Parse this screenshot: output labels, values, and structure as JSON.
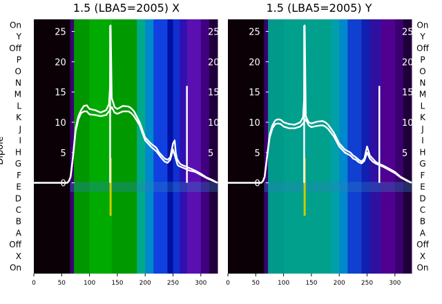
{
  "chart_data": [
    {
      "type": "heatmap",
      "title": "1.5 (LBA5=2005) X",
      "ylabel": "Dipole",
      "y_categories": [
        "On",
        "Y",
        "Off",
        "P",
        "O",
        "N",
        "M",
        "L",
        "K",
        "J",
        "I",
        "H",
        "G",
        "F",
        "E",
        "D",
        "C",
        "B",
        "A",
        "Off",
        "X",
        "On"
      ],
      "xlim": [
        0,
        330
      ],
      "x_ticks": [
        0,
        50,
        100,
        150,
        200,
        250,
        300
      ],
      "overlay_ylim": [
        -15,
        27
      ],
      "overlay_ticks": [
        0,
        5,
        10,
        15,
        20,
        25
      ],
      "bands": [
        {
          "x0": 0,
          "x1": 65,
          "color": "#0a0006"
        },
        {
          "x0": 65,
          "x1": 72,
          "color": "#3a0070"
        },
        {
          "x0": 72,
          "x1": 100,
          "color": "#009600"
        },
        {
          "x0": 100,
          "x1": 140,
          "color": "#00aa00"
        },
        {
          "x0": 140,
          "x1": 185,
          "color": "#009a00"
        },
        {
          "x0": 185,
          "x1": 200,
          "color": "#00aa88"
        },
        {
          "x0": 200,
          "x1": 215,
          "color": "#0088cc"
        },
        {
          "x0": 215,
          "x1": 240,
          "color": "#1040e0"
        },
        {
          "x0": 240,
          "x1": 250,
          "color": "#0010a0"
        },
        {
          "x0": 250,
          "x1": 262,
          "color": "#1030d0"
        },
        {
          "x0": 262,
          "x1": 275,
          "color": "#3010b0"
        },
        {
          "x0": 275,
          "x1": 300,
          "color": "#5a10b0"
        },
        {
          "x0": 300,
          "x1": 315,
          "color": "#400080"
        },
        {
          "x0": 315,
          "x1": 330,
          "color": "#20003a"
        }
      ],
      "highlight_row": "E",
      "lines": [
        {
          "x": [
            0,
            60,
            63,
            66,
            70,
            75,
            80,
            85,
            90,
            95,
            100,
            110,
            120,
            130,
            135,
            137,
            138,
            140,
            145,
            150,
            160,
            170,
            175,
            180,
            190,
            200,
            210,
            220,
            225,
            230,
            235,
            240,
            245,
            250,
            253,
            255,
            257,
            260,
            262,
            265,
            270,
            275,
            280,
            290,
            300,
            310,
            320,
            330
          ],
          "y": [
            0,
            0,
            0.3,
            1,
            4,
            9,
            11,
            12,
            12.7,
            12.8,
            12.2,
            12,
            11.6,
            12,
            13,
            16,
            26,
            14,
            12.5,
            12.2,
            12.7,
            12.6,
            12.3,
            11.8,
            10,
            7.5,
            6.5,
            5.8,
            5,
            4.5,
            4,
            3.8,
            4.2,
            6.5,
            7,
            5,
            4,
            3.5,
            3.2,
            3,
            2.8,
            2.6,
            2.4,
            2,
            1.5,
            0.9,
            0.5,
            0
          ]
        },
        {
          "x": [
            0,
            60,
            63,
            66,
            70,
            75,
            80,
            85,
            90,
            95,
            100,
            110,
            120,
            130,
            135,
            140,
            145,
            150,
            160,
            170,
            175,
            180,
            190,
            200,
            210,
            220,
            225,
            230,
            235,
            240,
            245,
            250,
            255,
            258,
            260,
            265,
            270,
            275,
            280,
            290,
            300,
            310,
            320,
            330
          ],
          "y": [
            0,
            0,
            0.3,
            1,
            4,
            8.5,
            10.5,
            11.5,
            11.8,
            11.8,
            11.3,
            11.2,
            11,
            11.2,
            11.8,
            12.5,
            11.6,
            11.4,
            11.8,
            11.8,
            11.5,
            11,
            9.5,
            7,
            6,
            5.2,
            4.6,
            4,
            3.5,
            3.3,
            3.8,
            5.5,
            4,
            3,
            2.8,
            2.6,
            2.4,
            2.2,
            2,
            1.8,
            1.3,
            0.8,
            0.4,
            0
          ]
        }
      ],
      "spikes": [
        {
          "x": 137,
          "y": 26
        },
        {
          "x": 275,
          "y": 16
        }
      ]
    },
    {
      "type": "heatmap",
      "title": "1.5 (LBA5=2005) Y",
      "y_categories": [
        "On",
        "Y",
        "Off",
        "P",
        "O",
        "N",
        "M",
        "L",
        "K",
        "J",
        "I",
        "H",
        "G",
        "F",
        "E",
        "D",
        "C",
        "B",
        "A",
        "Off",
        "X",
        "On"
      ],
      "xlim": [
        0,
        330
      ],
      "x_ticks": [
        0,
        50,
        100,
        150,
        200,
        250,
        300
      ],
      "overlay_ylim": [
        -15,
        27
      ],
      "overlay_ticks": [
        0,
        5,
        10,
        15,
        20,
        25
      ],
      "bands": [
        {
          "x0": 0,
          "x1": 65,
          "color": "#0a0006"
        },
        {
          "x0": 65,
          "x1": 72,
          "color": "#3a0070"
        },
        {
          "x0": 72,
          "x1": 100,
          "color": "#00998a"
        },
        {
          "x0": 100,
          "x1": 185,
          "color": "#00a08c"
        },
        {
          "x0": 185,
          "x1": 200,
          "color": "#00a0a8"
        },
        {
          "x0": 200,
          "x1": 215,
          "color": "#0088cc"
        },
        {
          "x0": 215,
          "x1": 240,
          "color": "#1040d0"
        },
        {
          "x0": 240,
          "x1": 255,
          "color": "#1020b0"
        },
        {
          "x0": 255,
          "x1": 275,
          "color": "#3010a0"
        },
        {
          "x0": 275,
          "x1": 300,
          "color": "#500090"
        },
        {
          "x0": 300,
          "x1": 315,
          "color": "#3a0070"
        },
        {
          "x0": 315,
          "x1": 330,
          "color": "#20003a"
        }
      ],
      "highlight_row": "E",
      "lines": [
        {
          "x": [
            0,
            60,
            63,
            66,
            70,
            75,
            80,
            85,
            90,
            95,
            100,
            110,
            120,
            130,
            135,
            137,
            138,
            140,
            145,
            150,
            160,
            170,
            175,
            180,
            190,
            200,
            210,
            220,
            225,
            230,
            235,
            240,
            245,
            250,
            255,
            260,
            265,
            270,
            275,
            280,
            290,
            300,
            310,
            320,
            330
          ],
          "y": [
            0,
            0,
            0.3,
            1,
            4,
            8,
            9.5,
            10.3,
            10.5,
            10.4,
            10,
            9.7,
            9.6,
            10,
            10.8,
            14,
            26,
            11,
            10,
            9.8,
            10.1,
            10.2,
            10,
            9.6,
            8.3,
            6.5,
            5.5,
            5,
            4.5,
            4.2,
            3.8,
            3.5,
            4,
            6,
            4.5,
            4,
            3.5,
            3.2,
            3,
            2.8,
            2.3,
            1.8,
            1,
            0.5,
            0
          ]
        },
        {
          "x": [
            0,
            60,
            63,
            66,
            70,
            75,
            80,
            85,
            90,
            95,
            100,
            110,
            120,
            130,
            135,
            140,
            145,
            150,
            160,
            170,
            175,
            180,
            190,
            200,
            210,
            220,
            225,
            230,
            235,
            240,
            245,
            250,
            255,
            260,
            265,
            270,
            275,
            280,
            290,
            300,
            310,
            320,
            330
          ],
          "y": [
            0,
            0,
            0.3,
            1,
            4,
            7.5,
            9,
            9.7,
            9.8,
            9.7,
            9.3,
            9,
            9,
            9.3,
            9.8,
            10.5,
            9.5,
            9.2,
            9.4,
            9.5,
            9.3,
            8.9,
            7.7,
            6,
            5,
            4.5,
            4,
            3.8,
            3.4,
            3.2,
            3.6,
            5,
            4,
            3.5,
            3.2,
            3,
            2.8,
            2.6,
            2.1,
            1.6,
            0.9,
            0.4,
            0
          ]
        }
      ],
      "spikes": [
        {
          "x": 137,
          "y": 26
        },
        {
          "x": 272,
          "y": 16
        }
      ]
    }
  ]
}
